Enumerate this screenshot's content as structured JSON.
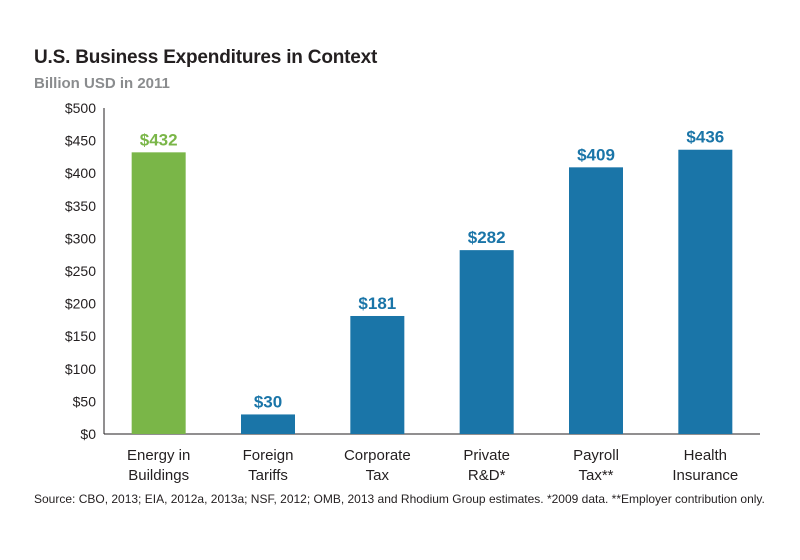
{
  "chart_data": {
    "type": "bar",
    "title": "U.S. Business Expenditures in Context",
    "subtitle": "Billion USD in 2011",
    "xlabel": "",
    "ylabel": "",
    "ylim": [
      0,
      500
    ],
    "yticks": [
      0,
      50,
      100,
      150,
      200,
      250,
      300,
      350,
      400,
      450,
      500
    ],
    "ytick_labels": [
      "$0",
      "$50",
      "$100",
      "$150",
      "$200",
      "$250",
      "$300",
      "$350",
      "$400",
      "$450",
      "$500"
    ],
    "categories": [
      [
        "Energy in",
        "Buildings"
      ],
      [
        "Foreign",
        "Tariffs"
      ],
      [
        "Corporate",
        "Tax"
      ],
      [
        "Private",
        "R&D*"
      ],
      [
        "Payroll",
        "Tax**"
      ],
      [
        "Health",
        "Insurance"
      ]
    ],
    "values": [
      432,
      30,
      181,
      282,
      409,
      436
    ],
    "data_labels": [
      "$432",
      "$30",
      "$181",
      "$282",
      "$409",
      "$436"
    ],
    "colors": [
      "#7ab648",
      "#1a75a8",
      "#1a75a8",
      "#1a75a8",
      "#1a75a8",
      "#1a75a8"
    ],
    "label_colors": [
      "#7ab648",
      "#1a75a8",
      "#1a75a8",
      "#1a75a8",
      "#1a75a8",
      "#1a75a8"
    ],
    "grid": false,
    "source": "Source: CBO, 2013; EIA, 2012a, 2013a; NSF, 2012; OMB, 2013 and Rhodium Group estimates. *2009 data. **Employer contribution only."
  }
}
